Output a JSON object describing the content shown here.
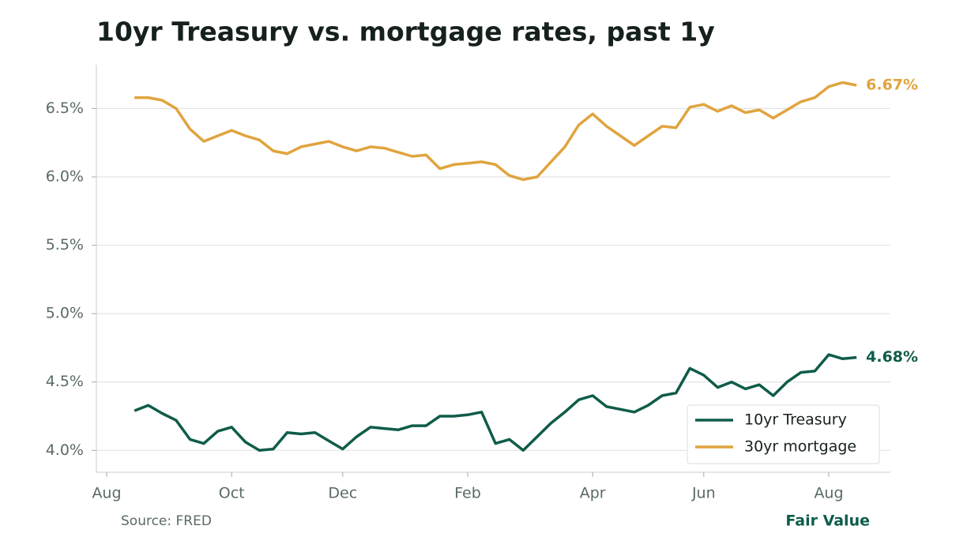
{
  "chart_data": {
    "type": "line",
    "title": "10yr Treasury vs. mortgage rates, past 1y",
    "source": "Source: FRED",
    "brand": "Fair Value",
    "categories": [
      "Aug",
      null,
      null,
      null,
      null,
      null,
      null,
      null,
      null,
      "Oct",
      null,
      null,
      null,
      null,
      null,
      null,
      null,
      "Dec",
      null,
      null,
      null,
      null,
      null,
      null,
      null,
      null,
      "Feb",
      null,
      null,
      null,
      null,
      null,
      null,
      null,
      null,
      "Apr",
      null,
      null,
      null,
      null,
      null,
      null,
      null,
      "Jun",
      null,
      null,
      null,
      null,
      null,
      null,
      null,
      null,
      "Aug",
      null,
      null
    ],
    "series": [
      {
        "name": "10yr Treasury",
        "color": "#0f5c4a",
        "values": [
          null,
          null,
          4.29,
          4.33,
          4.27,
          4.22,
          4.08,
          4.05,
          4.14,
          4.17,
          4.06,
          4.0,
          4.01,
          4.13,
          4.12,
          4.13,
          4.07,
          4.01,
          4.1,
          4.17,
          4.16,
          4.15,
          4.18,
          4.18,
          4.25,
          4.25,
          4.26,
          4.28,
          4.05,
          4.08,
          4.0,
          4.1,
          4.2,
          4.28,
          4.37,
          4.4,
          4.32,
          4.3,
          4.28,
          4.33,
          4.4,
          4.42,
          4.6,
          4.55,
          4.46,
          4.5,
          4.45,
          4.48,
          4.4,
          4.5,
          4.57,
          4.58,
          4.7,
          4.67,
          4.68
        ],
        "value_labels": [
          null,
          null,
          null,
          null,
          null,
          null,
          null,
          null,
          null,
          null,
          null,
          null,
          null,
          null,
          null,
          null,
          null,
          null,
          null,
          null,
          null,
          null,
          null,
          null,
          null,
          null,
          null,
          null,
          null,
          null,
          null,
          null,
          null,
          null,
          null,
          null,
          null,
          null,
          null,
          null,
          null,
          null,
          null,
          null,
          null,
          null,
          null,
          null,
          null,
          null,
          null,
          null,
          null,
          null,
          "4.68%"
        ]
      },
      {
        "name": "30yr mortgage",
        "color": "#e0a43e",
        "values": [
          null,
          null,
          6.58,
          6.58,
          6.56,
          6.5,
          6.35,
          6.26,
          6.3,
          6.34,
          6.3,
          6.27,
          6.19,
          6.17,
          6.22,
          6.24,
          6.26,
          6.22,
          6.19,
          6.22,
          6.21,
          6.18,
          6.15,
          6.16,
          6.06,
          6.09,
          6.1,
          6.11,
          6.09,
          6.01,
          5.98,
          6.0,
          6.11,
          6.22,
          6.38,
          6.46,
          6.37,
          6.3,
          6.23,
          6.3,
          6.37,
          6.36,
          6.51,
          6.53,
          6.48,
          6.52,
          6.47,
          6.49,
          6.43,
          6.49,
          6.55,
          6.58,
          6.66,
          6.69,
          6.67
        ],
        "value_labels": [
          null,
          null,
          null,
          null,
          null,
          null,
          null,
          null,
          null,
          null,
          null,
          null,
          null,
          null,
          null,
          null,
          null,
          null,
          null,
          null,
          null,
          null,
          null,
          null,
          null,
          null,
          null,
          null,
          null,
          null,
          null,
          null,
          null,
          null,
          null,
          null,
          null,
          null,
          null,
          null,
          null,
          null,
          null,
          null,
          null,
          null,
          null,
          null,
          null,
          null,
          null,
          null,
          null,
          null,
          "6.67%"
        ]
      }
    ],
    "ylim": [
      3.84,
      6.82
    ],
    "yticks": [
      {
        "value": 4.0,
        "label": "4.0%"
      },
      {
        "value": 4.5,
        "label": "4.5%"
      },
      {
        "value": 5.0,
        "label": "5.0%"
      },
      {
        "value": 5.5,
        "label": "5.5%"
      },
      {
        "value": 6.0,
        "label": "6.0%"
      },
      {
        "value": 6.5,
        "label": "6.5%"
      }
    ],
    "grid": true,
    "legend": "lower right"
  }
}
